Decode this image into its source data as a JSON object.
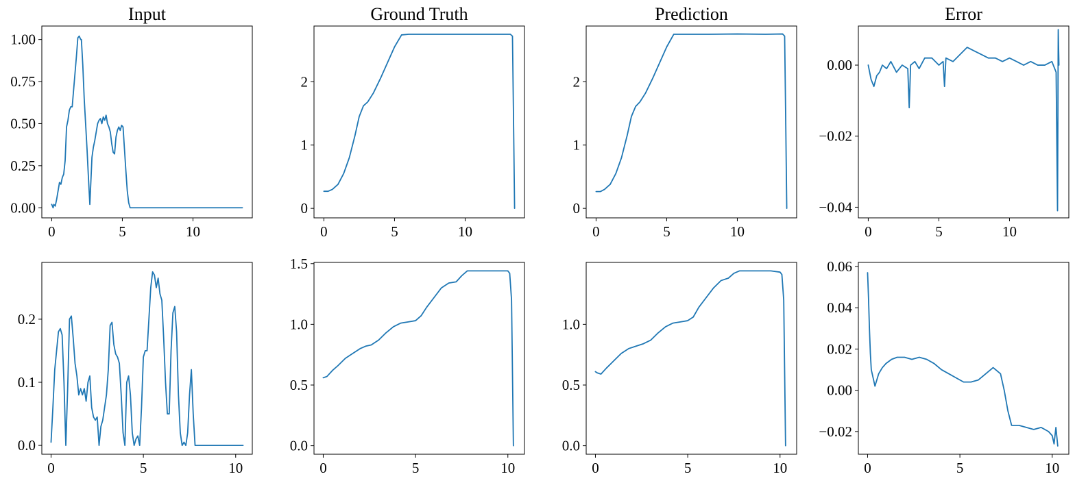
{
  "figure": {
    "line_color": "#1f77b4",
    "column_titles": [
      "Input",
      "Ground Truth",
      "Prediction",
      "Error"
    ]
  },
  "chart_data": [
    {
      "type": "line",
      "row": 0,
      "col": 0,
      "title": "Input",
      "xlim": [
        -0.7,
        14.2
      ],
      "ylim": [
        -0.06,
        1.08
      ],
      "xticks": [
        0,
        5,
        10
      ],
      "xtick_labels": [
        "0",
        "5",
        "10"
      ],
      "yticks": [
        0,
        0.25,
        0.5,
        0.75,
        1.0
      ],
      "ytick_labels": [
        "0.00",
        "0.25",
        "0.50",
        "0.75",
        "1.00"
      ],
      "series": [
        {
          "x": [
            0,
            0.1,
            0.15,
            0.25,
            0.35,
            0.45,
            0.55,
            0.65,
            0.75,
            0.85,
            0.95,
            1.05,
            1.15,
            1.25,
            1.35,
            1.45,
            1.55,
            1.65,
            1.75,
            1.85,
            1.95,
            2.05,
            2.1,
            2.2,
            2.3,
            2.4,
            2.5,
            2.6,
            2.7,
            2.85,
            2.95,
            3.05,
            3.15,
            3.25,
            3.35,
            3.45,
            3.55,
            3.65,
            3.75,
            3.85,
            3.95,
            4.05,
            4.15,
            4.25,
            4.35,
            4.45,
            4.55,
            4.65,
            4.75,
            4.85,
            4.95,
            5.05,
            5.15,
            5.25,
            5.35,
            5.45,
            5.55,
            5.6,
            8.0,
            13.5
          ],
          "y": [
            0.02,
            0.0,
            0.02,
            0.01,
            0.05,
            0.1,
            0.15,
            0.14,
            0.18,
            0.2,
            0.28,
            0.48,
            0.52,
            0.58,
            0.6,
            0.6,
            0.7,
            0.8,
            0.9,
            1.01,
            1.02,
            1.0,
            1.0,
            0.85,
            0.65,
            0.5,
            0.35,
            0.18,
            0.02,
            0.3,
            0.36,
            0.4,
            0.45,
            0.5,
            0.52,
            0.53,
            0.5,
            0.54,
            0.52,
            0.55,
            0.5,
            0.48,
            0.45,
            0.38,
            0.33,
            0.32,
            0.42,
            0.46,
            0.48,
            0.46,
            0.49,
            0.48,
            0.35,
            0.22,
            0.1,
            0.03,
            0.0,
            0.0,
            0.0,
            0.0
          ]
        }
      ]
    },
    {
      "type": "line",
      "row": 0,
      "col": 1,
      "title": "Ground Truth",
      "xlim": [
        -0.7,
        14.2
      ],
      "ylim": [
        -0.15,
        2.88
      ],
      "xticks": [
        0,
        5,
        10
      ],
      "xtick_labels": [
        "0",
        "5",
        "10"
      ],
      "yticks": [
        0,
        1,
        2
      ],
      "ytick_labels": [
        "0",
        "1",
        "2"
      ],
      "series": [
        {
          "x": [
            0,
            0.3,
            0.6,
            1.0,
            1.4,
            1.8,
            2.2,
            2.5,
            2.8,
            3.1,
            3.5,
            4.0,
            4.5,
            5.0,
            5.5,
            6.0,
            8.0,
            10.0,
            12.0,
            13.2,
            13.35,
            13.42,
            13.5
          ],
          "y": [
            0.27,
            0.27,
            0.3,
            0.38,
            0.55,
            0.8,
            1.15,
            1.45,
            1.62,
            1.68,
            1.82,
            2.05,
            2.3,
            2.55,
            2.74,
            2.75,
            2.75,
            2.75,
            2.75,
            2.75,
            2.72,
            1.5,
            0.0
          ]
        }
      ]
    },
    {
      "type": "line",
      "row": 0,
      "col": 2,
      "title": "Prediction",
      "xlim": [
        -0.7,
        14.2
      ],
      "ylim": [
        -0.15,
        2.88
      ],
      "xticks": [
        0,
        5,
        10
      ],
      "xtick_labels": [
        "0",
        "5",
        "10"
      ],
      "yticks": [
        0,
        1,
        2
      ],
      "ytick_labels": [
        "0",
        "1",
        "2"
      ],
      "series": [
        {
          "x": [
            0,
            0.3,
            0.6,
            1.0,
            1.4,
            1.8,
            2.2,
            2.5,
            2.8,
            3.1,
            3.5,
            4.0,
            4.5,
            5.0,
            5.5,
            6.0,
            8.0,
            10.0,
            12.0,
            13.2,
            13.35,
            13.42,
            13.5
          ],
          "y": [
            0.265,
            0.265,
            0.3,
            0.38,
            0.55,
            0.8,
            1.15,
            1.45,
            1.61,
            1.68,
            1.82,
            2.05,
            2.3,
            2.55,
            2.75,
            2.75,
            2.75,
            2.755,
            2.75,
            2.755,
            2.72,
            1.5,
            0.0
          ]
        }
      ]
    },
    {
      "type": "line",
      "row": 0,
      "col": 3,
      "title": "Error",
      "xlim": [
        -0.7,
        14.2
      ],
      "ylim": [
        -0.043,
        0.011
      ],
      "xticks": [
        0,
        5,
        10
      ],
      "xtick_labels": [
        "0",
        "5",
        "10"
      ],
      "yticks": [
        0.0,
        -0.02,
        -0.04
      ],
      "ytick_labels": [
        "0.00",
        "−0.02",
        "−0.04"
      ],
      "series": [
        {
          "x": [
            0,
            0.2,
            0.4,
            0.6,
            0.8,
            1.0,
            1.3,
            1.6,
            2.0,
            2.4,
            2.8,
            2.9,
            3.0,
            3.3,
            3.6,
            4.0,
            4.5,
            5.0,
            5.3,
            5.4,
            5.5,
            6.0,
            6.5,
            7.0,
            7.5,
            8.0,
            8.5,
            9.0,
            9.5,
            10.0,
            10.5,
            11.0,
            11.5,
            12.0,
            12.5,
            13.0,
            13.3,
            13.4,
            13.45,
            13.5
          ],
          "y": [
            0.0,
            -0.004,
            -0.006,
            -0.003,
            -0.002,
            0.0,
            -0.001,
            0.001,
            -0.002,
            0.0,
            -0.001,
            -0.012,
            0.0,
            0.001,
            -0.001,
            0.002,
            0.002,
            0.0,
            0.001,
            -0.006,
            0.002,
            0.001,
            0.003,
            0.005,
            0.004,
            0.003,
            0.002,
            0.002,
            0.001,
            0.002,
            0.001,
            0.0,
            0.001,
            0.0,
            0.0,
            0.001,
            -0.002,
            -0.041,
            0.01,
            0.0
          ]
        }
      ]
    },
    {
      "type": "line",
      "row": 1,
      "col": 0,
      "title": "",
      "xlim": [
        -0.5,
        10.9
      ],
      "ylim": [
        -0.014,
        0.29
      ],
      "xticks": [
        0,
        5,
        10
      ],
      "xtick_labels": [
        "0",
        "5",
        "10"
      ],
      "yticks": [
        0.0,
        0.1,
        0.2
      ],
      "ytick_labels": [
        "0.0",
        "0.1",
        "0.2"
      ],
      "series": [
        {
          "x": [
            0,
            0.1,
            0.2,
            0.3,
            0.4,
            0.5,
            0.6,
            0.7,
            0.8,
            0.9,
            1.0,
            1.1,
            1.2,
            1.3,
            1.4,
            1.5,
            1.6,
            1.7,
            1.8,
            1.9,
            2.0,
            2.1,
            2.2,
            2.3,
            2.4,
            2.5,
            2.6,
            2.7,
            2.8,
            2.9,
            3.0,
            3.1,
            3.2,
            3.3,
            3.4,
            3.5,
            3.6,
            3.7,
            3.8,
            3.9,
            4.0,
            4.1,
            4.2,
            4.3,
            4.4,
            4.5,
            4.6,
            4.7,
            4.8,
            4.9,
            5.0,
            5.1,
            5.2,
            5.3,
            5.4,
            5.5,
            5.6,
            5.7,
            5.8,
            5.9,
            6.0,
            6.1,
            6.2,
            6.3,
            6.4,
            6.5,
            6.6,
            6.7,
            6.8,
            6.9,
            7.0,
            7.1,
            7.2,
            7.3,
            7.4,
            7.5,
            7.6,
            7.7,
            7.8,
            10.4
          ],
          "y": [
            0.005,
            0.06,
            0.12,
            0.15,
            0.18,
            0.185,
            0.175,
            0.1,
            0.0,
            0.09,
            0.2,
            0.205,
            0.17,
            0.13,
            0.11,
            0.08,
            0.09,
            0.08,
            0.09,
            0.07,
            0.1,
            0.11,
            0.06,
            0.045,
            0.04,
            0.045,
            0.0,
            0.03,
            0.04,
            0.06,
            0.08,
            0.12,
            0.19,
            0.195,
            0.16,
            0.145,
            0.14,
            0.13,
            0.08,
            0.02,
            0.0,
            0.1,
            0.11,
            0.08,
            0.02,
            0.0,
            0.01,
            0.015,
            0.0,
            0.06,
            0.14,
            0.15,
            0.15,
            0.2,
            0.25,
            0.275,
            0.27,
            0.25,
            0.265,
            0.24,
            0.23,
            0.17,
            0.1,
            0.05,
            0.05,
            0.15,
            0.21,
            0.22,
            0.18,
            0.08,
            0.02,
            0.0,
            0.005,
            0.0,
            0.02,
            0.08,
            0.12,
            0.05,
            0.0,
            0.0
          ]
        }
      ]
    },
    {
      "type": "line",
      "row": 1,
      "col": 1,
      "title": "",
      "xlim": [
        -0.5,
        10.9
      ],
      "ylim": [
        -0.07,
        1.51
      ],
      "xticks": [
        0,
        5,
        10
      ],
      "xtick_labels": [
        "0",
        "5",
        "10"
      ],
      "yticks": [
        0.0,
        0.5,
        1.0,
        1.5
      ],
      "ytick_labels": [
        "0.0",
        "0.5",
        "1.0",
        "1.5"
      ],
      "series": [
        {
          "x": [
            0,
            0.2,
            0.5,
            0.8,
            1.2,
            1.6,
            2.0,
            2.3,
            2.6,
            3.0,
            3.4,
            3.8,
            4.2,
            4.6,
            5.0,
            5.3,
            5.6,
            6.0,
            6.4,
            6.8,
            7.2,
            7.5,
            7.8,
            8.5,
            9.0,
            9.5,
            10.0,
            10.1,
            10.2,
            10.3
          ],
          "y": [
            0.56,
            0.57,
            0.62,
            0.66,
            0.72,
            0.76,
            0.8,
            0.82,
            0.83,
            0.87,
            0.93,
            0.98,
            1.01,
            1.02,
            1.03,
            1.07,
            1.14,
            1.22,
            1.3,
            1.34,
            1.35,
            1.4,
            1.44,
            1.44,
            1.44,
            1.44,
            1.44,
            1.42,
            1.2,
            0.0
          ]
        }
      ]
    },
    {
      "type": "line",
      "row": 1,
      "col": 2,
      "title": "",
      "xlim": [
        -0.5,
        10.9
      ],
      "ylim": [
        -0.07,
        1.51
      ],
      "xticks": [
        0,
        5,
        10
      ],
      "xtick_labels": [
        "0",
        "5",
        "10"
      ],
      "yticks": [
        0.0,
        0.5,
        1.0
      ],
      "ytick_labels": [
        "0.0",
        "0.5",
        "1.0"
      ],
      "series": [
        {
          "x": [
            0,
            0.1,
            0.3,
            0.6,
            1.0,
            1.4,
            1.8,
            2.2,
            2.6,
            3.0,
            3.4,
            3.8,
            4.2,
            4.6,
            5.0,
            5.3,
            5.6,
            6.0,
            6.4,
            6.8,
            7.2,
            7.5,
            7.8,
            8.5,
            9.0,
            9.5,
            10.0,
            10.1,
            10.2,
            10.3
          ],
          "y": [
            0.61,
            0.6,
            0.59,
            0.64,
            0.7,
            0.76,
            0.8,
            0.82,
            0.84,
            0.87,
            0.93,
            0.98,
            1.01,
            1.02,
            1.03,
            1.06,
            1.14,
            1.22,
            1.3,
            1.36,
            1.38,
            1.42,
            1.44,
            1.44,
            1.44,
            1.44,
            1.43,
            1.41,
            1.2,
            0.0
          ]
        }
      ]
    },
    {
      "type": "line",
      "row": 1,
      "col": 3,
      "title": "",
      "xlim": [
        -0.5,
        10.9
      ],
      "ylim": [
        -0.031,
        0.062
      ],
      "xticks": [
        0,
        5,
        10
      ],
      "xtick_labels": [
        "0",
        "5",
        "10"
      ],
      "yticks": [
        0.06,
        0.04,
        0.02,
        0.0,
        -0.02
      ],
      "ytick_labels": [
        "0.06",
        "0.04",
        "0.02",
        "0.00",
        "−0.02"
      ],
      "series": [
        {
          "x": [
            0,
            0.05,
            0.1,
            0.15,
            0.2,
            0.3,
            0.4,
            0.6,
            0.8,
            1.0,
            1.3,
            1.6,
            2.0,
            2.4,
            2.8,
            3.2,
            3.6,
            4.0,
            4.4,
            4.8,
            5.2,
            5.6,
            6.0,
            6.4,
            6.8,
            7.2,
            7.4,
            7.6,
            7.8,
            8.2,
            8.6,
            9.0,
            9.4,
            9.8,
            10.0,
            10.1,
            10.2,
            10.3
          ],
          "y": [
            0.057,
            0.045,
            0.03,
            0.018,
            0.01,
            0.006,
            0.002,
            0.008,
            0.011,
            0.013,
            0.015,
            0.016,
            0.016,
            0.015,
            0.016,
            0.015,
            0.013,
            0.01,
            0.008,
            0.006,
            0.004,
            0.004,
            0.005,
            0.008,
            0.011,
            0.008,
            0.0,
            -0.01,
            -0.017,
            -0.017,
            -0.018,
            -0.019,
            -0.018,
            -0.02,
            -0.022,
            -0.026,
            -0.018,
            -0.027
          ]
        }
      ]
    }
  ]
}
